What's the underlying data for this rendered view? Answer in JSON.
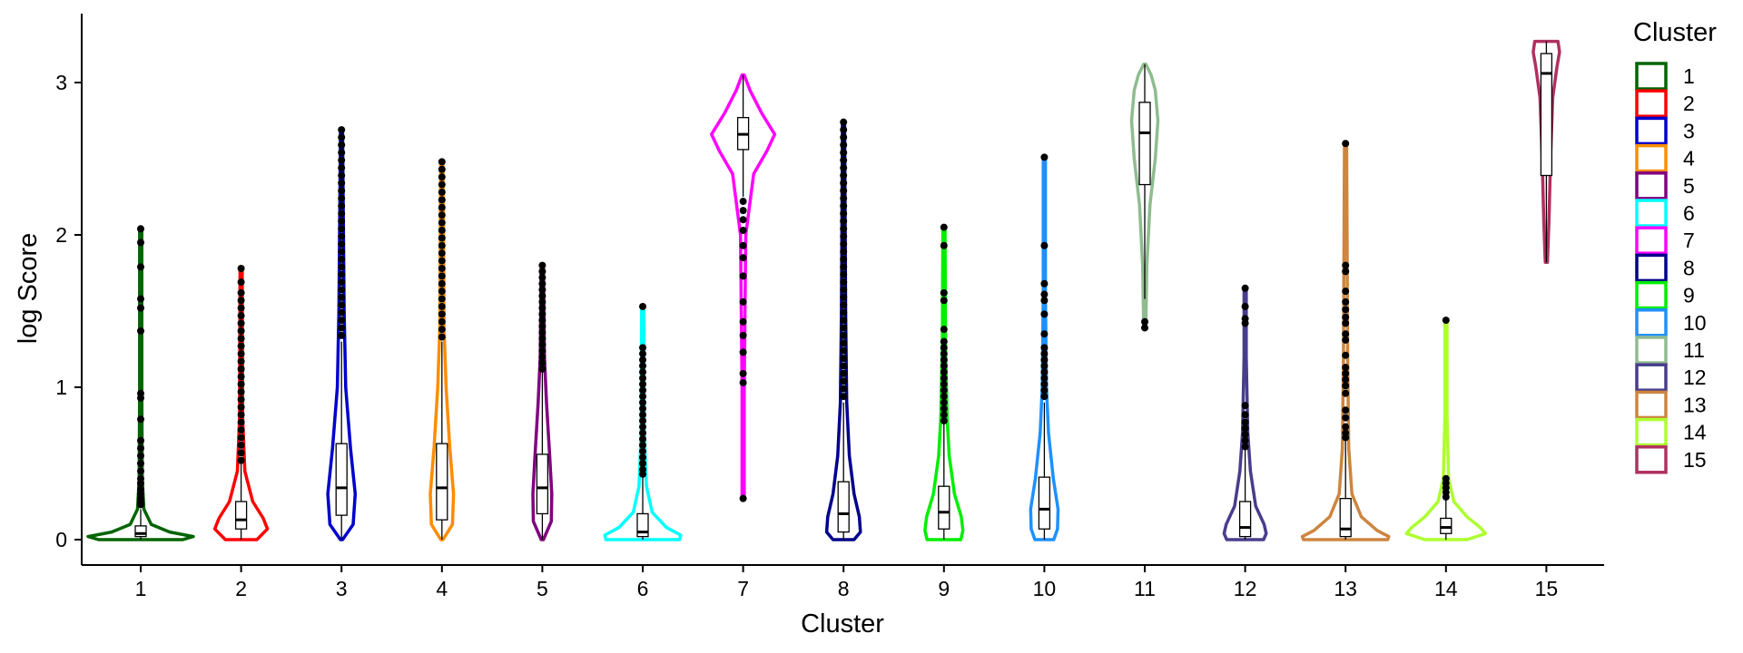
{
  "chart_data": {
    "type": "violin",
    "xlabel": "Cluster",
    "ylabel": "log Score",
    "ylim": [
      -0.15,
      3.45
    ],
    "yticks": [
      0,
      1,
      2,
      3
    ],
    "categories": [
      "1",
      "2",
      "3",
      "4",
      "5",
      "6",
      "7",
      "8",
      "9",
      "10",
      "11",
      "12",
      "13",
      "14",
      "15"
    ],
    "legend": {
      "title": "Cluster",
      "position": "right"
    },
    "series": [
      {
        "name": "1",
        "color": "#006400",
        "min": 0.0,
        "max": 2.04,
        "q1": 0.02,
        "median": 0.04,
        "q3": 0.09,
        "whisker_low": 0.0,
        "whisker_high": 0.2,
        "violin": [
          [
            0,
            0.8
          ],
          [
            0.02,
            1.0
          ],
          [
            0.05,
            0.55
          ],
          [
            0.1,
            0.2
          ],
          [
            0.2,
            0.06
          ],
          [
            0.4,
            0.03
          ],
          [
            1.0,
            0.02
          ],
          [
            2.04,
            0.02
          ]
        ],
        "outliers": [
          2.04,
          1.95,
          1.79,
          1.58,
          1.52,
          1.37,
          0.96,
          0.93,
          0.79,
          0.65,
          0.6,
          0.55,
          0.5,
          0.45,
          0.4,
          0.37,
          0.33,
          0.3,
          0.27,
          0.25,
          0.23
        ]
      },
      {
        "name": "2",
        "color": "#FF0000",
        "min": 0.0,
        "max": 1.78,
        "q1": 0.07,
        "median": 0.13,
        "q3": 0.25,
        "whisker_low": 0.0,
        "whisker_high": 0.5,
        "violin": [
          [
            0,
            0.3
          ],
          [
            0.07,
            0.5
          ],
          [
            0.14,
            0.42
          ],
          [
            0.25,
            0.22
          ],
          [
            0.45,
            0.07
          ],
          [
            0.8,
            0.03
          ],
          [
            1.78,
            0.02
          ]
        ],
        "outliers": [
          1.78,
          1.69,
          1.62,
          1.57,
          1.52,
          1.47,
          1.42,
          1.37,
          1.32,
          1.27,
          1.22,
          1.17,
          1.12,
          1.07,
          1.02,
          0.97,
          0.92,
          0.87,
          0.82,
          0.77,
          0.72,
          0.67,
          0.62,
          0.57,
          0.52
        ]
      },
      {
        "name": "3",
        "color": "#0000CD",
        "min": 0.0,
        "max": 2.69,
        "q1": 0.16,
        "median": 0.34,
        "q3": 0.63,
        "whisker_low": 0.0,
        "whisker_high": 1.3,
        "violin": [
          [
            0,
            0.02
          ],
          [
            0.1,
            0.22
          ],
          [
            0.3,
            0.26
          ],
          [
            0.6,
            0.17
          ],
          [
            1.0,
            0.08
          ],
          [
            1.5,
            0.05
          ],
          [
            2.3,
            0.03
          ],
          [
            2.69,
            0.02
          ]
        ],
        "outliers": [
          2.69,
          2.64,
          2.59,
          2.54,
          2.49,
          2.44,
          2.39,
          2.34,
          2.29,
          2.24,
          2.19,
          2.14,
          2.09,
          2.04,
          1.99,
          1.94,
          1.89,
          1.84,
          1.79,
          1.74,
          1.69,
          1.64,
          1.59,
          1.54,
          1.49,
          1.44,
          1.39,
          1.34
        ]
      },
      {
        "name": "4",
        "color": "#FF8C00",
        "min": 0.0,
        "max": 2.48,
        "q1": 0.13,
        "median": 0.34,
        "q3": 0.63,
        "whisker_low": 0.0,
        "whisker_high": 1.3,
        "violin": [
          [
            0,
            0.02
          ],
          [
            0.1,
            0.2
          ],
          [
            0.3,
            0.22
          ],
          [
            0.6,
            0.15
          ],
          [
            1.0,
            0.08
          ],
          [
            1.4,
            0.04
          ],
          [
            2.2,
            0.03
          ],
          [
            2.48,
            0.02
          ]
        ],
        "outliers": [
          2.48,
          2.43,
          2.38,
          2.33,
          2.28,
          2.23,
          2.18,
          2.13,
          2.08,
          2.03,
          1.98,
          1.93,
          1.88,
          1.83,
          1.78,
          1.73,
          1.68,
          1.63,
          1.58,
          1.53,
          1.48,
          1.43,
          1.38,
          1.33
        ]
      },
      {
        "name": "5",
        "color": "#800080",
        "min": 0.0,
        "max": 1.8,
        "q1": 0.17,
        "median": 0.34,
        "q3": 0.56,
        "whisker_low": 0.0,
        "whisker_high": 1.1,
        "violin": [
          [
            0,
            0.02
          ],
          [
            0.12,
            0.17
          ],
          [
            0.3,
            0.18
          ],
          [
            0.55,
            0.14
          ],
          [
            0.9,
            0.08
          ],
          [
            1.2,
            0.04
          ],
          [
            1.8,
            0.02
          ]
        ],
        "outliers": [
          1.8,
          1.76,
          1.72,
          1.68,
          1.64,
          1.6,
          1.56,
          1.52,
          1.48,
          1.44,
          1.4,
          1.36,
          1.32,
          1.28,
          1.24,
          1.2,
          1.16,
          1.12
        ]
      },
      {
        "name": "6",
        "color": "#00FFFF",
        "min": 0.0,
        "max": 1.53,
        "q1": 0.02,
        "median": 0.05,
        "q3": 0.17,
        "whisker_low": 0.0,
        "whisker_high": 0.42,
        "violin": [
          [
            0,
            0.7
          ],
          [
            0.03,
            0.72
          ],
          [
            0.08,
            0.45
          ],
          [
            0.18,
            0.18
          ],
          [
            0.35,
            0.07
          ],
          [
            0.7,
            0.03
          ],
          [
            1.53,
            0.02
          ]
        ],
        "outliers": [
          1.53,
          1.26,
          1.22,
          1.18,
          1.14,
          1.1,
          1.06,
          1.02,
          0.98,
          0.94,
          0.9,
          0.86,
          0.82,
          0.78,
          0.74,
          0.7,
          0.66,
          0.62,
          0.58,
          0.54,
          0.5,
          0.46,
          0.43
        ]
      },
      {
        "name": "7",
        "color": "#FF00FF",
        "min": 0.27,
        "max": 3.05,
        "q1": 2.56,
        "median": 2.66,
        "q3": 2.77,
        "whisker_low": 2.25,
        "whisker_high": 3.05,
        "violin": [
          [
            0.27,
            0.02
          ],
          [
            1.0,
            0.02
          ],
          [
            2.0,
            0.05
          ],
          [
            2.4,
            0.2
          ],
          [
            2.55,
            0.45
          ],
          [
            2.66,
            0.6
          ],
          [
            2.8,
            0.35
          ],
          [
            2.95,
            0.13
          ],
          [
            3.05,
            0.02
          ]
        ],
        "outliers": [
          2.22,
          2.16,
          2.1,
          2.03,
          1.93,
          1.85,
          1.73,
          1.56,
          1.43,
          1.34,
          1.23,
          1.09,
          1.03,
          0.27
        ]
      },
      {
        "name": "8",
        "color": "#00008B",
        "min": 0.0,
        "max": 2.74,
        "q1": 0.05,
        "median": 0.17,
        "q3": 0.38,
        "whisker_low": 0.0,
        "whisker_high": 0.9,
        "violin": [
          [
            0,
            0.2
          ],
          [
            0.05,
            0.32
          ],
          [
            0.15,
            0.3
          ],
          [
            0.3,
            0.2
          ],
          [
            0.55,
            0.11
          ],
          [
            0.9,
            0.06
          ],
          [
            1.5,
            0.04
          ],
          [
            2.74,
            0.02
          ]
        ],
        "outliers": [
          2.74,
          2.69,
          2.64,
          2.59,
          2.54,
          2.49,
          2.44,
          2.39,
          2.34,
          2.29,
          2.24,
          2.19,
          2.14,
          2.09,
          2.04,
          1.99,
          1.94,
          1.89,
          1.84,
          1.79,
          1.74,
          1.69,
          1.64,
          1.59,
          1.54,
          1.49,
          1.44,
          1.39,
          1.34,
          1.29,
          1.24,
          1.19,
          1.14,
          1.09,
          1.04,
          0.99,
          0.94
        ]
      },
      {
        "name": "9",
        "color": "#00EE00",
        "min": 0.0,
        "max": 2.05,
        "q1": 0.07,
        "median": 0.18,
        "q3": 0.35,
        "whisker_low": 0.0,
        "whisker_high": 0.76,
        "violin": [
          [
            0,
            0.32
          ],
          [
            0.06,
            0.36
          ],
          [
            0.15,
            0.33
          ],
          [
            0.3,
            0.2
          ],
          [
            0.55,
            0.1
          ],
          [
            0.8,
            0.06
          ],
          [
            1.3,
            0.03
          ],
          [
            2.05,
            0.02
          ]
        ],
        "outliers": [
          2.05,
          1.93,
          1.62,
          1.57,
          1.38,
          1.3,
          1.26,
          1.22,
          1.18,
          1.14,
          1.1,
          1.06,
          1.02,
          0.98,
          0.94,
          0.9,
          0.86,
          0.82,
          0.78
        ]
      },
      {
        "name": "10",
        "color": "#1E90FF",
        "min": 0.0,
        "max": 2.51,
        "q1": 0.07,
        "median": 0.2,
        "q3": 0.41,
        "whisker_low": 0.0,
        "whisker_high": 0.9,
        "violin": [
          [
            0,
            0.18
          ],
          [
            0.07,
            0.25
          ],
          [
            0.2,
            0.26
          ],
          [
            0.4,
            0.17
          ],
          [
            0.7,
            0.08
          ],
          [
            1.0,
            0.04
          ],
          [
            1.6,
            0.02
          ],
          [
            2.51,
            0.02
          ]
        ],
        "outliers": [
          2.51,
          1.93,
          1.68,
          1.61,
          1.57,
          1.48,
          1.35,
          1.26,
          1.22,
          1.18,
          1.14,
          1.1,
          1.06,
          1.02,
          0.98,
          0.94
        ]
      },
      {
        "name": "11",
        "color": "#8FBC8F",
        "min": 1.4,
        "max": 3.12,
        "q1": 2.33,
        "median": 2.67,
        "q3": 2.87,
        "whisker_low": 1.58,
        "whisker_high": 3.12,
        "violin": [
          [
            1.4,
            0.02
          ],
          [
            1.8,
            0.04
          ],
          [
            2.2,
            0.1
          ],
          [
            2.5,
            0.2
          ],
          [
            2.75,
            0.25
          ],
          [
            2.95,
            0.2
          ],
          [
            3.05,
            0.12
          ],
          [
            3.12,
            0.02
          ]
        ],
        "outliers": [
          1.43,
          1.39
        ]
      },
      {
        "name": "12",
        "color": "#483D8B",
        "min": 0.0,
        "max": 1.65,
        "q1": 0.02,
        "median": 0.08,
        "q3": 0.25,
        "whisker_low": 0.0,
        "whisker_high": 0.6,
        "violin": [
          [
            0,
            0.35
          ],
          [
            0.04,
            0.4
          ],
          [
            0.1,
            0.36
          ],
          [
            0.22,
            0.2
          ],
          [
            0.45,
            0.1
          ],
          [
            0.7,
            0.05
          ],
          [
            1.2,
            0.02
          ],
          [
            1.65,
            0.02
          ]
        ],
        "outliers": [
          1.65,
          1.53,
          1.45,
          1.42,
          0.88,
          0.82,
          0.77,
          0.73,
          0.69,
          0.65,
          0.61
        ]
      },
      {
        "name": "13",
        "color": "#CD853F",
        "min": 0.0,
        "max": 2.6,
        "q1": 0.02,
        "median": 0.07,
        "q3": 0.27,
        "whisker_low": 0.0,
        "whisker_high": 0.65,
        "violin": [
          [
            0,
            0.8
          ],
          [
            0.02,
            0.82
          ],
          [
            0.06,
            0.6
          ],
          [
            0.15,
            0.3
          ],
          [
            0.3,
            0.12
          ],
          [
            0.6,
            0.06
          ],
          [
            1.2,
            0.04
          ],
          [
            2.6,
            0.02
          ]
        ],
        "outliers": [
          2.6,
          1.8,
          1.76,
          1.63,
          1.56,
          1.51,
          1.46,
          1.42,
          1.35,
          1.31,
          1.21,
          1.13,
          1.09,
          1.05,
          1.01,
          0.96,
          0.85,
          0.8,
          0.74,
          0.7,
          0.67
        ]
      },
      {
        "name": "14",
        "color": "#ADFF2F",
        "min": 0.0,
        "max": 1.44,
        "q1": 0.04,
        "median": 0.08,
        "q3": 0.14,
        "whisker_low": 0.0,
        "whisker_high": 0.27,
        "violin": [
          [
            0,
            0.4
          ],
          [
            0.04,
            0.75
          ],
          [
            0.08,
            0.65
          ],
          [
            0.15,
            0.4
          ],
          [
            0.25,
            0.15
          ],
          [
            0.4,
            0.05
          ],
          [
            0.8,
            0.02
          ],
          [
            1.44,
            0.02
          ]
        ],
        "outliers": [
          1.44,
          0.4,
          0.37,
          0.34,
          0.31,
          0.28
        ]
      },
      {
        "name": "15",
        "color": "#B03060",
        "min": 1.82,
        "max": 3.27,
        "q1": 2.39,
        "median": 3.06,
        "q3": 3.19,
        "whisker_low": 1.82,
        "whisker_high": 3.27,
        "violin": [
          [
            1.82,
            0.02
          ],
          [
            2.1,
            0.05
          ],
          [
            2.5,
            0.08
          ],
          [
            2.9,
            0.12
          ],
          [
            3.1,
            0.2
          ],
          [
            3.2,
            0.25
          ],
          [
            3.27,
            0.22
          ]
        ],
        "outliers": []
      }
    ]
  }
}
